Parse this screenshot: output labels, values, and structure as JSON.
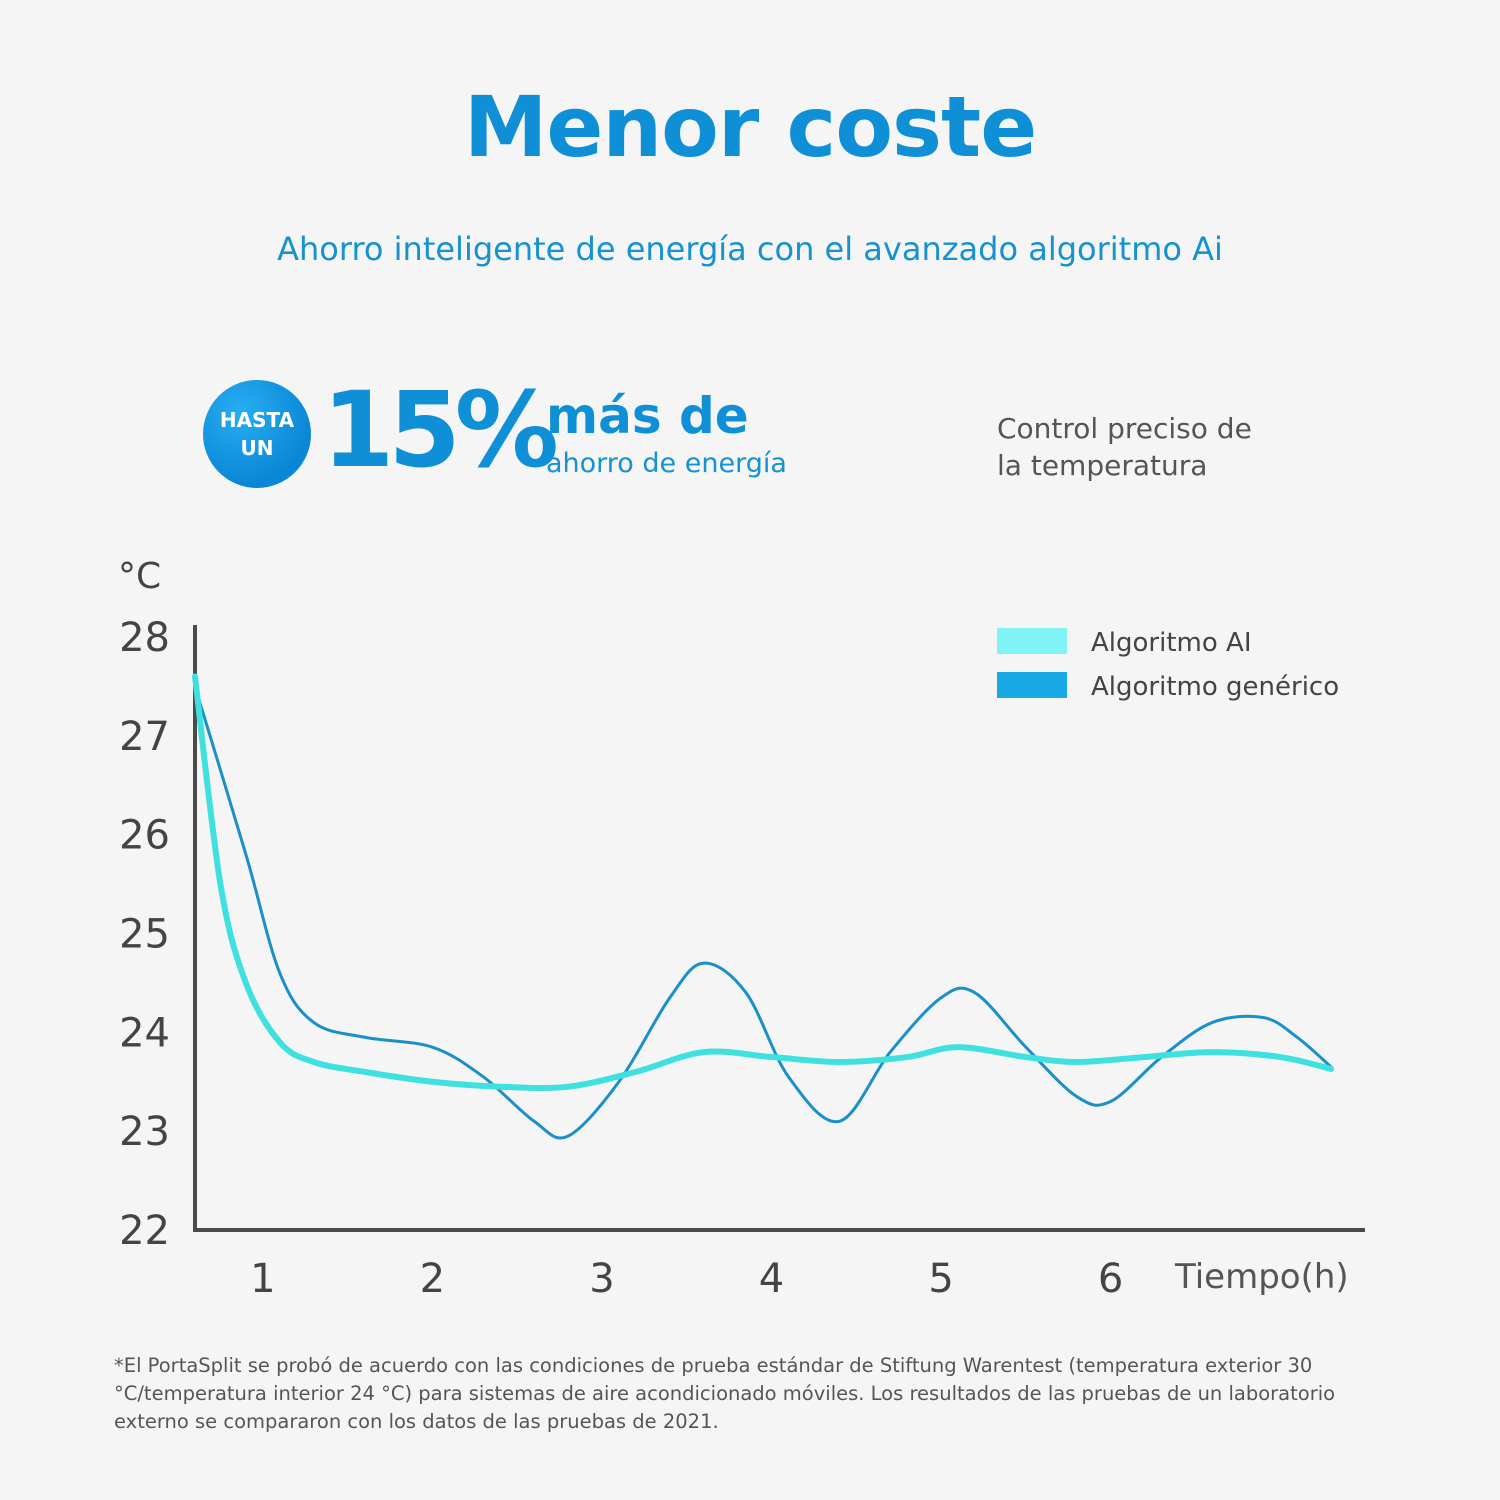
{
  "header": {
    "title": "Menor coste",
    "subtitle": "Ahorro inteligente de energía con el avanzado algoritmo Ai"
  },
  "promo": {
    "badge_line1": "HASTA",
    "badge_line2": "UN",
    "percent": "15%",
    "headline": "más de",
    "subline": "ahorro de energía"
  },
  "note": {
    "line1": "Control preciso de",
    "line2": "la temperatura"
  },
  "chart_data": {
    "type": "line",
    "ylabel": "°C",
    "xlabel": "Tiempo(h)",
    "ylim": [
      22,
      28
    ],
    "xlim": [
      0.6,
      7.5
    ],
    "yticks": [
      22,
      23,
      24,
      25,
      26,
      27,
      28
    ],
    "xticks": [
      1,
      2,
      3,
      4,
      5,
      6
    ],
    "legend_position": "top-right",
    "grid": false,
    "series": [
      {
        "name": "Algoritmo AI",
        "color": "#3fe0e0",
        "x": [
          0.6,
          0.75,
          0.9,
          1.1,
          1.3,
          1.6,
          2.0,
          2.4,
          2.8,
          3.2,
          3.6,
          4.0,
          4.4,
          4.8,
          5.1,
          5.5,
          5.8,
          6.2,
          6.6,
          7.0,
          7.3
        ],
        "y": [
          27.6,
          25.5,
          24.5,
          23.9,
          23.7,
          23.6,
          23.5,
          23.45,
          23.45,
          23.6,
          23.8,
          23.75,
          23.7,
          23.75,
          23.85,
          23.75,
          23.7,
          23.75,
          23.8,
          23.75,
          23.63
        ]
      },
      {
        "name": "Algoritmo genérico",
        "color": "#1a8fc9",
        "x": [
          0.6,
          0.9,
          1.1,
          1.3,
          1.6,
          2.0,
          2.3,
          2.6,
          2.8,
          3.1,
          3.4,
          3.6,
          3.85,
          4.1,
          4.4,
          4.7,
          5.0,
          5.2,
          5.5,
          5.8,
          6.0,
          6.3,
          6.6,
          6.9,
          7.1,
          7.3
        ],
        "y": [
          27.5,
          25.8,
          24.6,
          24.1,
          23.95,
          23.85,
          23.55,
          23.1,
          22.95,
          23.5,
          24.35,
          24.7,
          24.4,
          23.55,
          23.1,
          23.8,
          24.35,
          24.4,
          23.85,
          23.35,
          23.3,
          23.75,
          24.1,
          24.15,
          23.95,
          23.65
        ]
      }
    ]
  },
  "footnote": "*El PortaSplit se probó de acuerdo con las condiciones de prueba estándar de Stiftung Warentest (temperatura exterior 30 °C/temperatura interior 24 °C) para sistemas de aire acondicionado móviles. Los resultados de las pruebas de un laboratorio externo se compararon con los datos de las pruebas de 2021."
}
